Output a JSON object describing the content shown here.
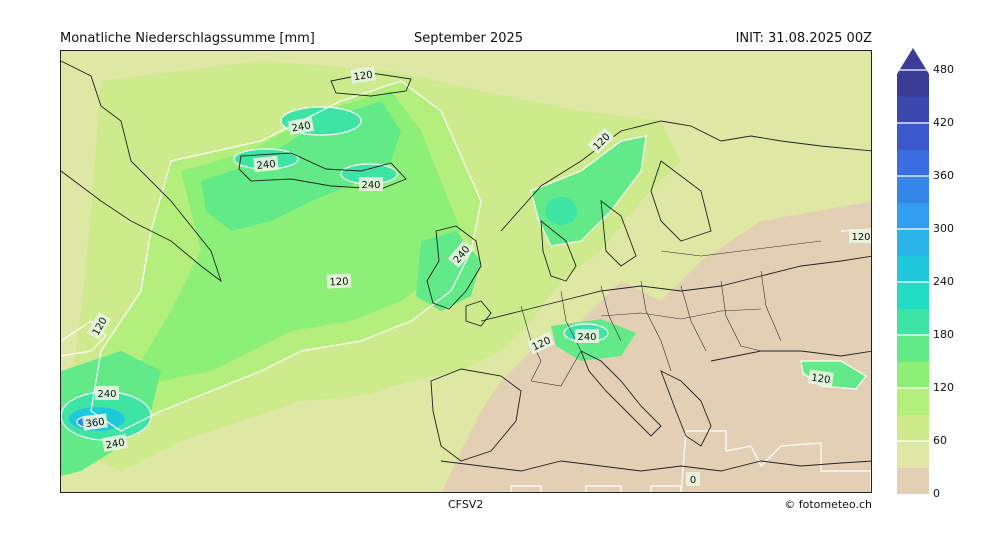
{
  "header": {
    "title": "Monatliche Niederschlagssumme [mm]",
    "period": "September 2025",
    "init": "INIT: 31.08.2025 00Z"
  },
  "footer": {
    "model": "CFSV2",
    "credit": "© fotometeo.ch"
  },
  "map": {
    "contour_labels": [
      "120",
      "240",
      "240",
      "240",
      "240",
      "120",
      "120",
      "120",
      "120",
      "240",
      "120",
      "240",
      "360",
      "240",
      "0",
      "120"
    ]
  },
  "colorbar": {
    "ticks": [
      "0",
      "60",
      "120",
      "180",
      "240",
      "300",
      "360",
      "420",
      "480"
    ],
    "colors": [
      "#e3cfb4",
      "#dfe7a4",
      "#cdeb8c",
      "#b4ee7c",
      "#8cef78",
      "#62ea88",
      "#3ee4a4",
      "#22dcc4",
      "#20c8dc",
      "#2ab4ea",
      "#319ef0",
      "#3686ea",
      "#3a6ee0",
      "#3c58cc",
      "#3c47b0",
      "#3a3c96"
    ]
  }
}
